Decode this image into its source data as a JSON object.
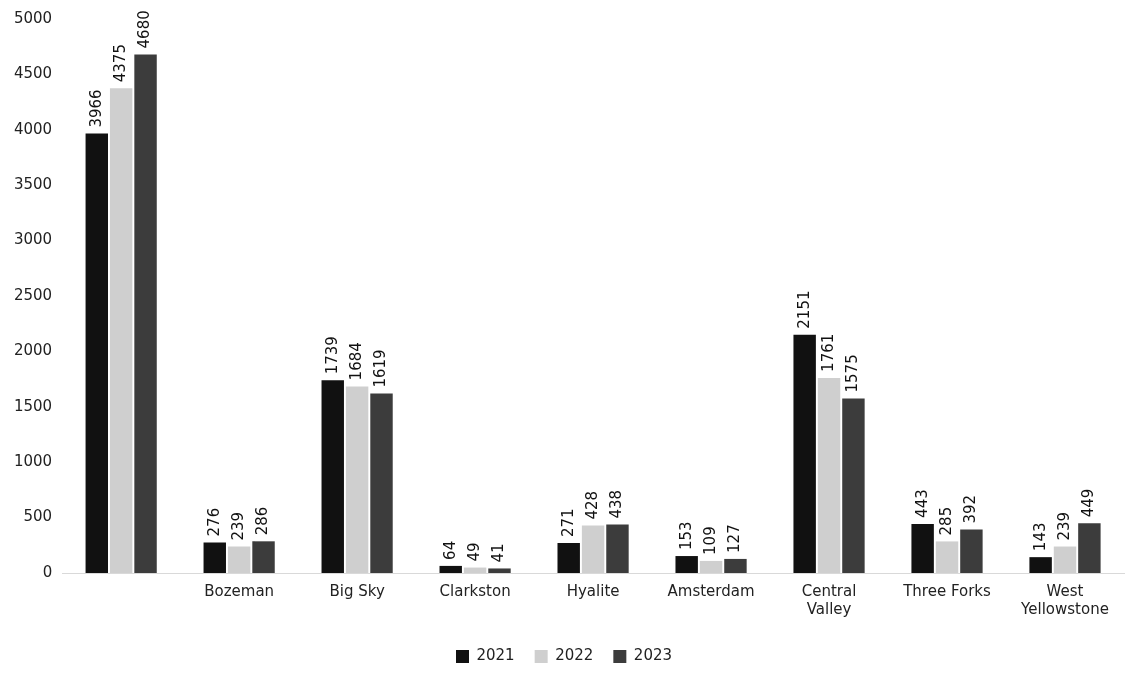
{
  "chart_data": {
    "type": "bar",
    "categories": [
      null,
      "Bozeman",
      "Big Sky",
      "Clarkston",
      "Hyalite",
      "Amsterdam",
      "Central Valley",
      "Three Forks",
      "West Yellowstone"
    ],
    "series": [
      {
        "name": "2021",
        "color": "#111111",
        "values": [
          3966,
          276,
          1739,
          64,
          271,
          153,
          2151,
          443,
          143
        ]
      },
      {
        "name": "2022",
        "color": "#cfcfcf",
        "values": [
          4375,
          239,
          1684,
          49,
          428,
          109,
          1761,
          285,
          239
        ]
      },
      {
        "name": "2023",
        "color": "#3c3c3c",
        "values": [
          4680,
          286,
          1619,
          41,
          438,
          127,
          1575,
          392,
          449
        ]
      }
    ],
    "ylim": [
      0,
      5000
    ],
    "yticks": [
      0,
      500,
      1000,
      1500,
      2000,
      2500,
      3000,
      3500,
      4000,
      4500,
      5000
    ],
    "grid": false,
    "legend": "bottom",
    "data_labels": true
  }
}
